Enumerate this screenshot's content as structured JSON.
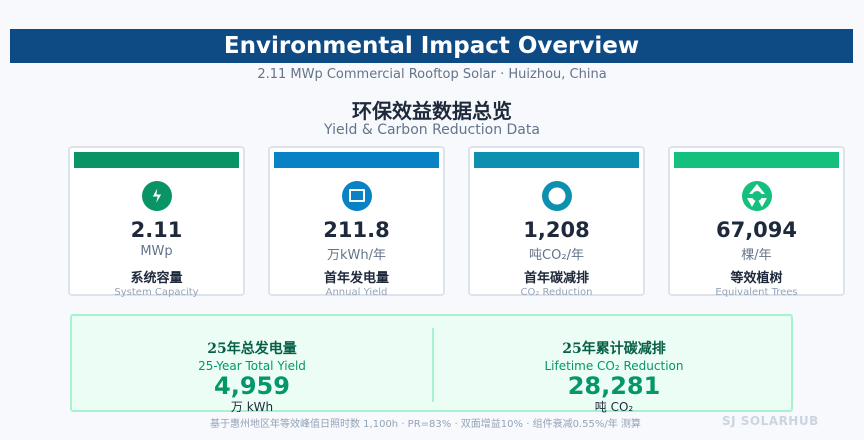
{
  "header": {
    "title": "Environmental Impact Overview",
    "subtitle": "2.11 MWp Commercial Rooftop Solar · Huizhou, China"
  },
  "section": {
    "title_zh": "环保效益数据总览",
    "title_en": "Yield & Carbon Reduction Data"
  },
  "cards": [
    {
      "value": "2.11",
      "unit": "MWp",
      "label_zh": "系统容量",
      "label_en": "System Capacity",
      "color": "#0a9465",
      "icon": "lightning-icon"
    },
    {
      "value": "211.8",
      "unit": "万kWh/年",
      "label_zh": "首年发电量",
      "label_en": "Annual Yield",
      "color": "#0881c5",
      "icon": "panel-icon"
    },
    {
      "value": "1,208",
      "unit": "吨CO₂/年",
      "label_zh": "首年碳减排",
      "label_en": "CO₂ Reduction",
      "color": "#0d90b0",
      "icon": "ring-icon"
    },
    {
      "value": "67,094",
      "unit": "棵/年",
      "label_zh": "等效植树",
      "label_en": "Equivalent Trees",
      "color": "#15c07e",
      "icon": "recycle-icon"
    }
  ],
  "summary": {
    "left": {
      "label_zh": "25年总发电量",
      "label_en": "25-Year Total Yield",
      "value": "4,959",
      "unit": "万 kWh"
    },
    "right": {
      "label_zh": "25年累计碳减排",
      "label_en": "Lifetime CO₂ Reduction",
      "value": "28,281",
      "unit": "吨 CO₂"
    }
  },
  "footer": {
    "note": "基于惠州地区年等效峰值日照时数 1,100h · PR=83% · 双面增益10% · 组件衰减0.55%/年 测算",
    "brand": "SJ SOLARHUB"
  }
}
